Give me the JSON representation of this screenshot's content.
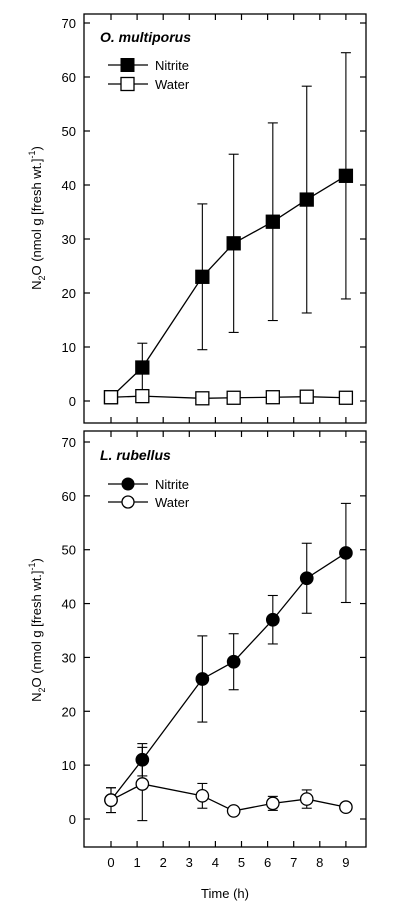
{
  "chart_data": [
    {
      "type": "line",
      "title": "O. multiporus",
      "ylabel_main": "N",
      "ylabel_sub": "2",
      "ylabel_mid": "O (nmol g [fresh wt.]",
      "ylabel_sup": "-1",
      "ylabel_end": ")",
      "ylim": [
        0,
        70
      ],
      "xlim": [
        -0.5,
        9.7
      ],
      "yticks": [
        "0",
        "10",
        "20",
        "30",
        "40",
        "50",
        "60",
        "70"
      ],
      "series": [
        {
          "name": "Nitrite",
          "marker": "filled-square",
          "x": [
            0,
            1.2,
            3.5,
            4.7,
            6.2,
            7.5,
            9
          ],
          "y": [
            0.7,
            6.2,
            23,
            29.2,
            33.2,
            37.3,
            41.7
          ],
          "err": [
            0.3,
            4.5,
            13.5,
            16.5,
            18.3,
            21,
            22.8
          ]
        },
        {
          "name": "Water",
          "marker": "open-square",
          "x": [
            0,
            1.2,
            3.5,
            4.7,
            6.2,
            7.5,
            9
          ],
          "y": [
            0.7,
            0.9,
            0.5,
            0.6,
            0.7,
            0.8,
            0.6
          ],
          "err": [
            0,
            0,
            0,
            0,
            0,
            0,
            0
          ]
        }
      ]
    },
    {
      "type": "line",
      "title": "L. rubellus",
      "xlabel": "Time (h)",
      "ylabel_main": "N",
      "ylabel_sub": "2",
      "ylabel_mid": "O (nmol g [fresh wt.]",
      "ylabel_sup": "-1",
      "ylabel_end": ")",
      "ylim": [
        -5,
        70
      ],
      "xlim": [
        -0.5,
        9.7
      ],
      "yticks": [
        "0",
        "10",
        "20",
        "30",
        "40",
        "50",
        "60",
        "70"
      ],
      "xticks": [
        "0",
        "1",
        "2",
        "3",
        "4",
        "5",
        "6",
        "7",
        "8",
        "9"
      ],
      "series": [
        {
          "name": "Nitrite",
          "marker": "filled-circle",
          "x": [
            0,
            1.2,
            3.5,
            4.7,
            6.2,
            7.5,
            9
          ],
          "y": [
            3.5,
            11,
            26,
            29.2,
            37,
            44.7,
            49.4
          ],
          "err": [
            2.3,
            3,
            8,
            5.2,
            4.5,
            6.5,
            9.2
          ]
        },
        {
          "name": "Water",
          "marker": "open-circle",
          "x": [
            0,
            1.2,
            3.5,
            4.7,
            6.2,
            7.5,
            9
          ],
          "y": [
            3.5,
            6.5,
            4.3,
            1.5,
            2.9,
            3.7,
            2.2
          ],
          "err": [
            2.3,
            6.8,
            2.3,
            0.5,
            1.3,
            1.7,
            0.8
          ]
        }
      ]
    }
  ]
}
